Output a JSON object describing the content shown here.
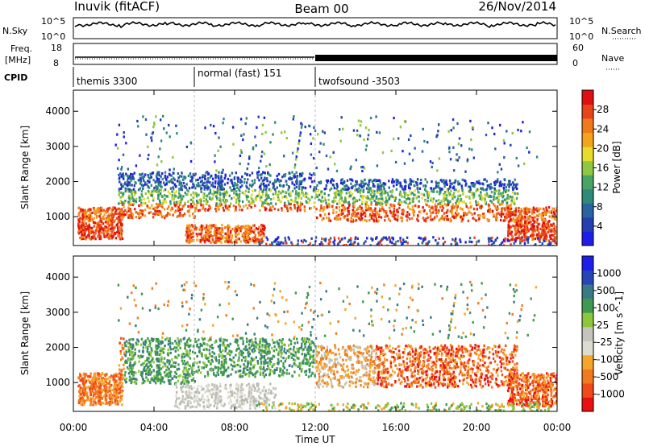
{
  "header": {
    "station": "Inuvik (fitACF)",
    "beam": "Beam 00",
    "date": "26/Nov/2014"
  },
  "noise_panel": {
    "left_label": "N.Sky",
    "right_label": "N.Search",
    "left_ticks": [
      "10^5",
      "10^0"
    ],
    "right_ticks": [
      "10^5",
      "10^0"
    ]
  },
  "freq_panel": {
    "left_label_line1": "Freq.",
    "left_label_line2": "[MHz]",
    "right_label": "Nave",
    "left_ticks": [
      "18",
      "8"
    ],
    "right_ticks": [
      "60",
      "0"
    ]
  },
  "cpid_panel": {
    "label": "CPID",
    "modes": [
      {
        "name": "themis 3300",
        "start_hour": 0
      },
      {
        "name": "normal (fast) 151",
        "start_hour": 6
      },
      {
        "name": "twofsound -3503",
        "start_hour": 12
      }
    ]
  },
  "x_axis": {
    "label": "Time UT",
    "ticks": [
      "00:00",
      "04:00",
      "08:00",
      "12:00",
      "16:00",
      "20:00",
      "00:00"
    ],
    "range_hours": [
      0,
      24
    ]
  },
  "chart_data": [
    {
      "type": "heatmap",
      "title": "",
      "ylabel": "Slant Range [km]",
      "ylim": [
        180,
        4600
      ],
      "y_ticks": [
        "1000",
        "2000",
        "3000",
        "4000"
      ],
      "colorbar": {
        "label": "Power [dB]",
        "ticks": [
          "4",
          "8",
          "12",
          "16",
          "20",
          "24",
          "28"
        ],
        "range": [
          0,
          32
        ]
      }
    },
    {
      "type": "heatmap",
      "title": "",
      "ylabel": "Slant Range [km]",
      "ylim": [
        180,
        4600
      ],
      "y_ticks": [
        "1000",
        "2000",
        "3000",
        "4000"
      ],
      "colorbar": {
        "label": "Velocity [m s^-1]",
        "ticks": [
          "1000",
          "500",
          "100",
          "25",
          "-25",
          "-100",
          "-500",
          "-1000"
        ]
      }
    }
  ]
}
